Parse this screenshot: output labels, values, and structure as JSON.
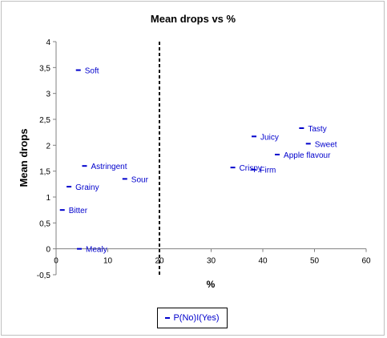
{
  "chart_data": {
    "type": "scatter",
    "title": "Mean drops vs %",
    "xlabel": "%",
    "ylabel": "Mean drops",
    "xlim": [
      0,
      60
    ],
    "ylim": [
      -0.5,
      4
    ],
    "x_ticks": [
      "0",
      "10",
      "20",
      "30",
      "40",
      "50",
      "60"
    ],
    "y_ticks": [
      "-0,5",
      "0",
      "0,5",
      "1",
      "1,5",
      "2",
      "2,5",
      "3",
      "3,5",
      "4"
    ],
    "x_tick_values": [
      0,
      10,
      20,
      30,
      40,
      50,
      60
    ],
    "y_tick_values": [
      -0.5,
      0,
      0.5,
      1,
      1.5,
      2,
      2.5,
      3,
      3.5,
      4
    ],
    "reference_line_x": 20,
    "grid": false,
    "legend_position": "bottom",
    "marker_color": "#0000cc",
    "series": [
      {
        "name": "P(No)I(Yes)",
        "points": [
          {
            "label": "Soft",
            "x": 4.3,
            "y": 3.45
          },
          {
            "label": "Astringent",
            "x": 5.5,
            "y": 1.6
          },
          {
            "label": "Sour",
            "x": 13.3,
            "y": 1.35
          },
          {
            "label": "Grainy",
            "x": 2.5,
            "y": 1.2
          },
          {
            "label": "Bitter",
            "x": 1.2,
            "y": 0.75
          },
          {
            "label": "Mealy",
            "x": 4.5,
            "y": 0.0
          },
          {
            "label": "Tasty",
            "x": 47.5,
            "y": 2.33
          },
          {
            "label": "Juicy",
            "x": 38.3,
            "y": 2.17
          },
          {
            "label": "Sweet",
            "x": 48.8,
            "y": 2.03
          },
          {
            "label": "Apple flavour",
            "x": 42.8,
            "y": 1.82
          },
          {
            "label": "Crispy",
            "x": 34.2,
            "y": 1.57
          },
          {
            "label": "Firm",
            "x": 38.2,
            "y": 1.53
          }
        ]
      }
    ]
  }
}
